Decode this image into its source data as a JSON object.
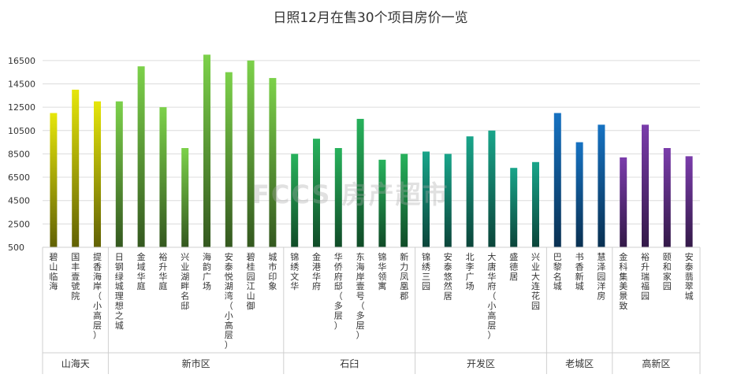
{
  "chart_data": {
    "type": "bar",
    "title": "日照12月在售30个项目房价一览",
    "watermark": "FCCS 房产超市",
    "y_ticks": [
      "16500",
      "14500",
      "12500",
      "10500",
      "8500",
      "6500",
      "4500",
      "2500",
      "500"
    ],
    "ylim": [
      500,
      17500
    ],
    "grid": true,
    "categories": [
      "碧山临海",
      "国丰壹號院",
      "提香海岸（小高层）",
      "日钢绿城理想之城",
      "金域华庭",
      "裕升华庭",
      "兴业湖畔名邸",
      "海韵广场",
      "安泰悦湖湾（小高层）",
      "碧桂园江山御",
      "城市印象",
      "锦绣文华",
      "金港华府",
      "华侨府邸（多层）",
      "东海岸壹号（多层）",
      "锦华领寓",
      "新力凤凰郡",
      "锦绣三园",
      "安泰悠然居",
      "北李广场",
      "大唐华府（小高层）",
      "盛德居",
      "兴业大连花园",
      "巴黎名城",
      "书香新城",
      "慧泽园洋房",
      "金科集美景致",
      "裕升瑞福园",
      "颐和家园",
      "安泰翡翠城"
    ],
    "values": [
      12000,
      14000,
      13000,
      13000,
      16000,
      12500,
      9000,
      17000,
      15500,
      16500,
      15000,
      8500,
      9800,
      9000,
      11500,
      8000,
      8500,
      8700,
      8500,
      10000,
      10500,
      7300,
      7800,
      12000,
      9500,
      11000,
      8200,
      11000,
      9000,
      8300
    ],
    "groups": [
      {
        "name": "山海天",
        "count": 3,
        "color": "#e6e60a"
      },
      {
        "name": "新市区",
        "count": 8,
        "color": "#7cd14a"
      },
      {
        "name": "石臼",
        "count": 6,
        "color": "#27b25c"
      },
      {
        "name": "开发区",
        "count": 6,
        "color": "#19a58a"
      },
      {
        "name": "老城区",
        "count": 3,
        "color": "#1672c2"
      },
      {
        "name": "高新区",
        "count": 4,
        "color": "#7a3cab"
      }
    ]
  }
}
